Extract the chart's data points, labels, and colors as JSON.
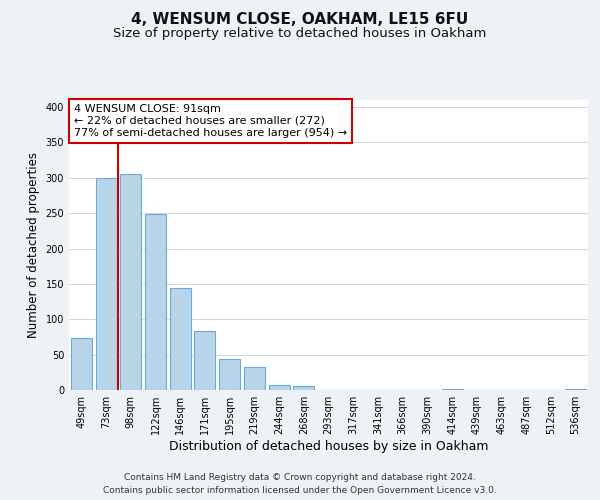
{
  "title": "4, WENSUM CLOSE, OAKHAM, LE15 6FU",
  "subtitle": "Size of property relative to detached houses in Oakham",
  "xlabel": "Distribution of detached houses by size in Oakham",
  "ylabel": "Number of detached properties",
  "bar_labels": [
    "49sqm",
    "73sqm",
    "98sqm",
    "122sqm",
    "146sqm",
    "171sqm",
    "195sqm",
    "219sqm",
    "244sqm",
    "268sqm",
    "293sqm",
    "317sqm",
    "341sqm",
    "366sqm",
    "390sqm",
    "414sqm",
    "439sqm",
    "463sqm",
    "487sqm",
    "512sqm",
    "536sqm"
  ],
  "bar_values": [
    74,
    300,
    305,
    249,
    144,
    83,
    44,
    32,
    7,
    6,
    0,
    0,
    0,
    0,
    0,
    2,
    0,
    0,
    0,
    0,
    2
  ],
  "bar_color": "#b8d4e8",
  "bar_edge_color": "#6aaad4",
  "marker_line_color": "#cc0000",
  "annotation_title": "4 WENSUM CLOSE: 91sqm",
  "annotation_line1": "← 22% of detached houses are smaller (272)",
  "annotation_line2": "77% of semi-detached houses are larger (954) →",
  "annotation_box_color": "#ffffff",
  "annotation_box_edge": "#cc0000",
  "ylim": [
    0,
    410
  ],
  "yticks": [
    0,
    50,
    100,
    150,
    200,
    250,
    300,
    350,
    400
  ],
  "footer_line1": "Contains HM Land Registry data © Crown copyright and database right 2024.",
  "footer_line2": "Contains public sector information licensed under the Open Government Licence v3.0.",
  "bg_color": "#eef2f6",
  "plot_bg_color": "#ffffff",
  "title_fontsize": 11,
  "subtitle_fontsize": 9.5,
  "xlabel_fontsize": 9,
  "ylabel_fontsize": 8.5,
  "tick_fontsize": 7,
  "footer_fontsize": 6.5,
  "annotation_fontsize": 8
}
